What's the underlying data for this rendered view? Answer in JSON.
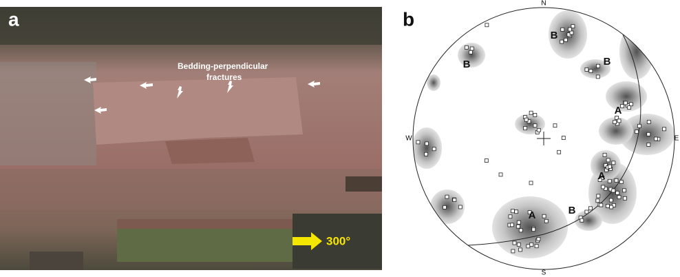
{
  "panel_a": {
    "label": "a",
    "annotation_lines": [
      "Bedding-perpendicular",
      "fractures"
    ],
    "direction": "300°"
  },
  "panel_b": {
    "label": "b",
    "compass": {
      "north": "N",
      "east": "E",
      "south": "S",
      "west": "W"
    },
    "set_labels": [
      "B",
      "B",
      "B",
      "A",
      "A",
      "A",
      "B"
    ]
  }
}
